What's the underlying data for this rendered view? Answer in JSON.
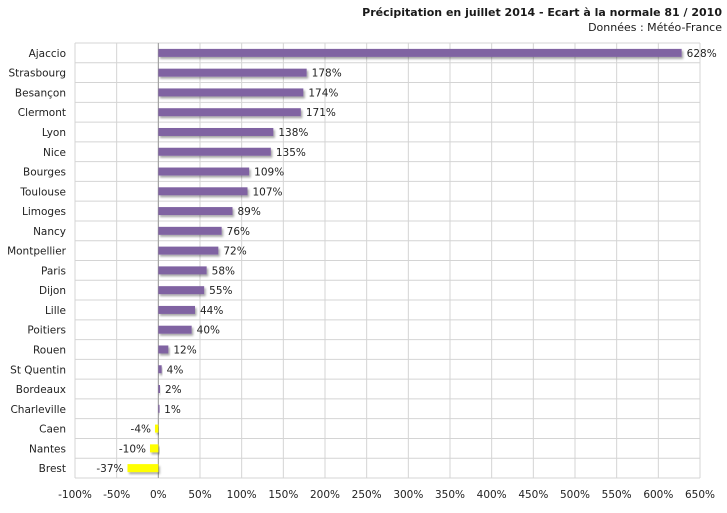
{
  "chart_data": {
    "type": "bar",
    "orientation": "horizontal",
    "title": "Précipitation en juillet 2014 - Ecart à la normale 81 / 2010",
    "subtitle": "Données : Météo-France",
    "categories": [
      "Ajaccio",
      "Strasbourg",
      "Besançon",
      "Clermont",
      "Lyon",
      "Nice",
      "Bourges",
      "Toulouse",
      "Limoges",
      "Nancy",
      "Montpellier",
      "Paris",
      "Dijon",
      "Lille",
      "Poitiers",
      "Rouen",
      "St Quentin",
      "Bordeaux",
      "Charleville",
      "Caen",
      "Nantes",
      "Brest"
    ],
    "values": [
      628,
      178,
      174,
      171,
      138,
      135,
      109,
      107,
      89,
      76,
      72,
      58,
      55,
      44,
      40,
      12,
      4,
      2,
      1,
      -4,
      -10,
      -37
    ],
    "value_labels": [
      "628%",
      "178%",
      "174%",
      "171%",
      "138%",
      "135%",
      "109%",
      "107%",
      "89%",
      "76%",
      "72%",
      "58%",
      "55%",
      "44%",
      "40%",
      "12%",
      "4%",
      "2%",
      "1%",
      "-4%",
      "-10%",
      "-37%"
    ],
    "xlim": [
      -100,
      650
    ],
    "xticks": [
      -100,
      -50,
      0,
      50,
      100,
      150,
      200,
      250,
      300,
      350,
      400,
      450,
      500,
      550,
      600,
      650
    ],
    "xtick_labels": [
      "-100%",
      "-50%",
      "0%",
      "50%",
      "100%",
      "150%",
      "200%",
      "250%",
      "300%",
      "350%",
      "400%",
      "450%",
      "500%",
      "550%",
      "600%",
      "650%"
    ],
    "xlabel": "",
    "ylabel": "",
    "grid": true,
    "legend": "none",
    "colors": {
      "positive": "#8064a2",
      "negative": "#ffff00",
      "grid": "#d4d4d4"
    }
  }
}
